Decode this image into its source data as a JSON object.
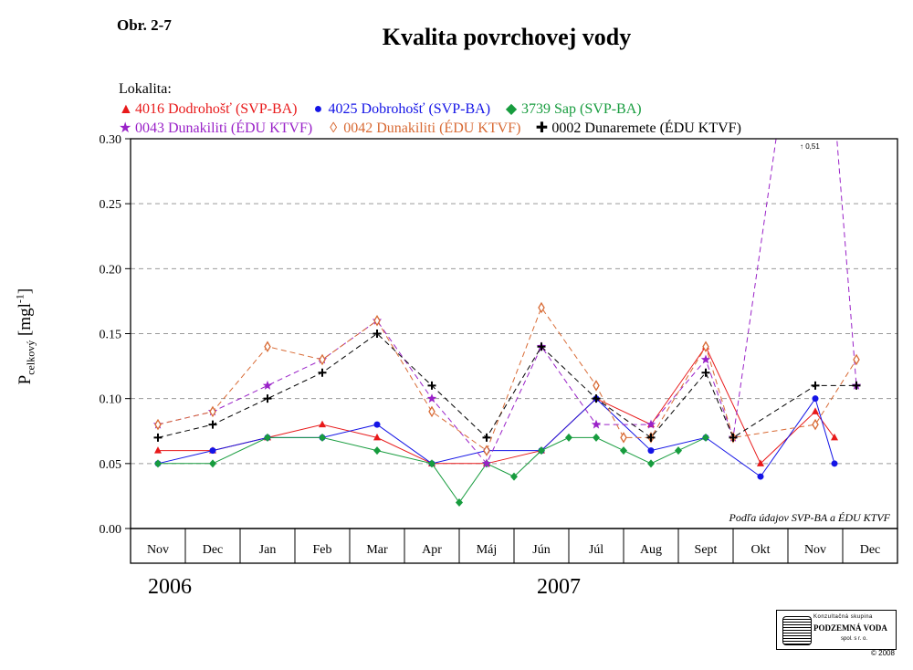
{
  "figure_id": "Obr. 2-7",
  "title": "Kvalita povrchovej vody",
  "legend_title": "Lokalita:",
  "years": [
    "2006",
    "2007"
  ],
  "ylabel": {
    "main": "P",
    "sub": "celkový",
    "unit": "[mgl",
    "sup": "-1",
    "close": "]"
  },
  "source_note": "Podľa údajov SVP-BA a ÉDU KTVF",
  "offscale_note": "0,51",
  "logo": {
    "line1": "Konzultačná skupina",
    "line2": "PODZEMNÁ VODA",
    "line3": "spol. s r. o."
  },
  "copyright": "© 2008",
  "chart_data": {
    "type": "line",
    "categories": [
      "Nov",
      "Dec",
      "Jan",
      "Feb",
      "Mar",
      "Apr",
      "Máj",
      "Jún",
      "Júl",
      "Aug",
      "Sept",
      "Okt",
      "Nov",
      "Dec"
    ],
    "ylim": [
      0,
      0.3
    ],
    "yticks": [
      "0.00",
      "0.05",
      "0.10",
      "0.15",
      "0.20",
      "0.25",
      "0.30"
    ],
    "grid": true,
    "series": [
      {
        "name": "4016 Dodrohošť (SVP-BA)",
        "color": "#e8191a",
        "marker": "triangle",
        "dashed": false,
        "x": [
          0.0,
          1.0,
          2.0,
          3.0,
          4.0,
          5.0,
          6.0,
          7.0,
          8.0,
          9.0,
          10.0,
          11.0,
          12.0,
          12.35
        ],
        "values": [
          0.06,
          0.06,
          0.07,
          0.08,
          0.07,
          0.05,
          0.05,
          0.06,
          0.1,
          0.08,
          0.14,
          0.05,
          0.09,
          0.07
        ]
      },
      {
        "name": "4025 Dobrohošť (SVP-BA)",
        "color": "#1414e6",
        "marker": "circle",
        "dashed": false,
        "x": [
          0.0,
          1.0,
          2.0,
          3.0,
          4.0,
          5.0,
          6.0,
          7.0,
          8.0,
          9.0,
          10.0,
          11.0,
          12.0,
          12.35
        ],
        "values": [
          0.05,
          0.06,
          0.07,
          0.07,
          0.08,
          0.05,
          0.06,
          0.06,
          0.1,
          0.06,
          0.07,
          0.04,
          0.1,
          0.05
        ]
      },
      {
        "name": "3739 Sap (SVP-BA)",
        "color": "#179c3e",
        "marker": "diamond",
        "dashed": false,
        "x": [
          0.0,
          1.0,
          2.0,
          3.0,
          4.0,
          5.0,
          5.5,
          6.0,
          6.5,
          7.0,
          7.5,
          8.0,
          8.5,
          9.0,
          9.5,
          10.0
        ],
        "values": [
          0.05,
          0.05,
          0.07,
          0.07,
          0.06,
          0.05,
          0.02,
          0.05,
          0.04,
          0.06,
          0.07,
          0.07,
          0.06,
          0.05,
          0.06,
          0.07
        ]
      },
      {
        "name": "0043 Dunakiliti (ÉDU KTVF)",
        "color": "#9a22c8",
        "marker": "star",
        "dashed": true,
        "x": [
          0.0,
          1.0,
          2.0,
          3.0,
          4.0,
          5.0,
          6.0,
          7.0,
          8.0,
          9.0,
          10.0,
          10.5,
          12.0,
          12.75
        ],
        "values": [
          0.08,
          0.09,
          0.11,
          0.13,
          0.16,
          0.1,
          0.05,
          0.14,
          0.08,
          0.08,
          0.13,
          0.07,
          0.51,
          0.11
        ]
      },
      {
        "name": "0042 Dunakiliti (ÉDU KTVF)",
        "color": "#d86a34",
        "marker": "diamond-open",
        "dashed": true,
        "x": [
          0.0,
          1.0,
          2.0,
          3.0,
          4.0,
          5.0,
          6.0,
          7.0,
          8.0,
          8.5,
          9.0,
          10.0,
          10.5,
          12.0,
          12.75
        ],
        "values": [
          0.08,
          0.09,
          0.14,
          0.13,
          0.16,
          0.09,
          0.06,
          0.17,
          0.11,
          0.07,
          0.07,
          0.14,
          0.07,
          0.08,
          0.13
        ]
      },
      {
        "name": "0002 Dunaremete (ÉDU KTVF)",
        "color": "#000000",
        "marker": "plus",
        "dashed": true,
        "x": [
          0.0,
          1.0,
          2.0,
          3.0,
          4.0,
          5.0,
          6.0,
          7.0,
          8.0,
          9.0,
          10.0,
          10.5,
          12.0,
          12.75
        ],
        "values": [
          0.07,
          0.08,
          0.1,
          0.12,
          0.15,
          0.11,
          0.07,
          0.14,
          0.1,
          0.07,
          0.12,
          0.07,
          0.11,
          0.11
        ]
      }
    ]
  }
}
